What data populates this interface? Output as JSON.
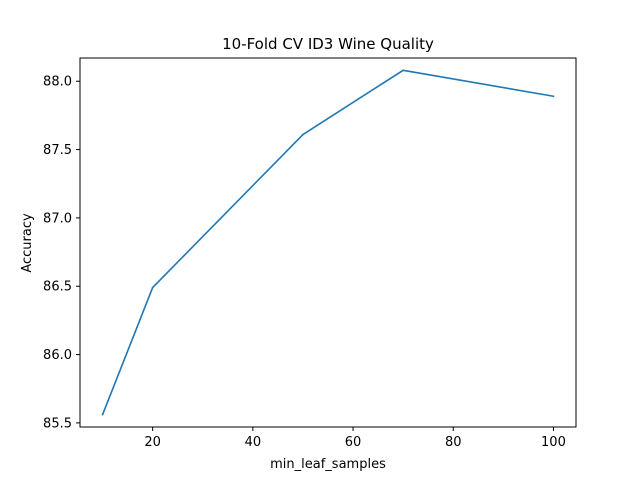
{
  "chart_data": {
    "type": "line",
    "title": "10-Fold CV  ID3 Wine Quality",
    "xlabel": "min_leaf_samples",
    "ylabel": "Accuracy",
    "xlim": [
      5.5,
      104.5
    ],
    "ylim": [
      85.47,
      88.17
    ],
    "grid": false,
    "x_ticks": [
      20,
      40,
      60,
      80,
      100
    ],
    "x_tick_labels": [
      "20",
      "40",
      "60",
      "80",
      "100"
    ],
    "y_ticks": [
      85.5,
      86.0,
      86.5,
      87.0,
      87.5,
      88.0
    ],
    "y_tick_labels": [
      "85.5",
      "86.0",
      "86.5",
      "87.0",
      "87.5",
      "88.0"
    ],
    "series": [
      {
        "name": "accuracy",
        "color": "#1f77b4",
        "x": [
          10,
          20,
          50,
          70,
          100
        ],
        "y": [
          85.56,
          86.49,
          87.61,
          88.08,
          87.89
        ]
      }
    ]
  }
}
